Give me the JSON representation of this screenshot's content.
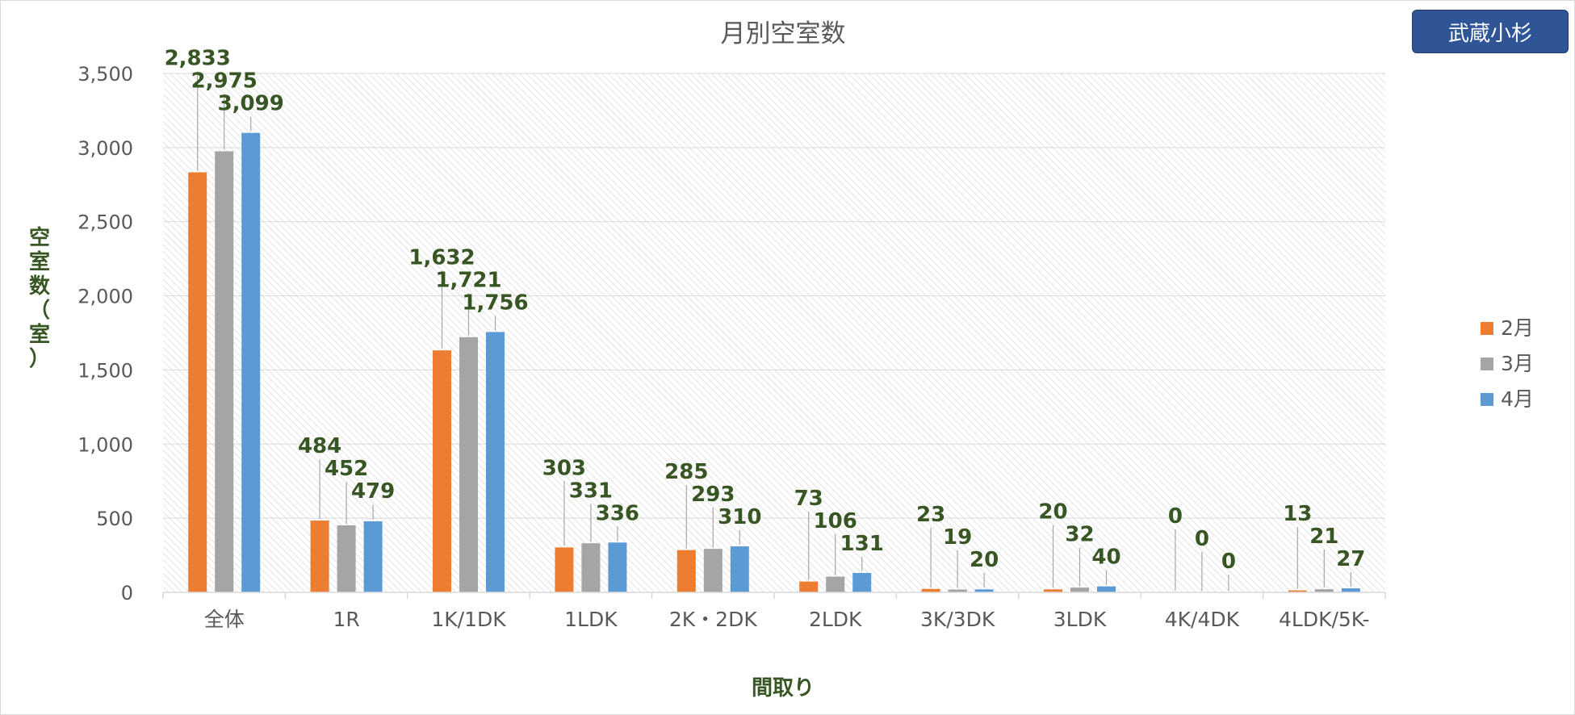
{
  "region_label": "武蔵小杉",
  "chart_data": {
    "type": "bar",
    "title": "月別空室数",
    "xlabel": "間取り",
    "ylabel": "空室数（室）",
    "ylim": [
      0,
      3500
    ],
    "yticks": [
      0,
      500,
      1000,
      1500,
      2000,
      2500,
      3000,
      3500
    ],
    "ytick_labels": [
      "0",
      "500",
      "1,000",
      "1,500",
      "2,000",
      "2,500",
      "3,000",
      "3,500"
    ],
    "grid": true,
    "legend_position": "right",
    "categories": [
      "全体",
      "1R",
      "1K/1DK",
      "1LDK",
      "2K・2DK",
      "2LDK",
      "3K/3DK",
      "3LDK",
      "4K/4DK",
      "4LDK/5K-"
    ],
    "series": [
      {
        "name": "2月",
        "color": "#ed7d31",
        "values": [
          2833,
          484,
          1632,
          303,
          285,
          73,
          23,
          20,
          0,
          13
        ],
        "labels": [
          "2,833",
          "484",
          "1,632",
          "303",
          "285",
          "73",
          "23",
          "20",
          "0",
          "13"
        ]
      },
      {
        "name": "3月",
        "color": "#a5a5a5",
        "values": [
          2975,
          452,
          1721,
          331,
          293,
          106,
          19,
          32,
          0,
          21
        ],
        "labels": [
          "2,975",
          "452",
          "1,721",
          "331",
          "293",
          "106",
          "19",
          "32",
          "0",
          "21"
        ]
      },
      {
        "name": "4月",
        "color": "#5b9bd5",
        "values": [
          3099,
          479,
          1756,
          336,
          310,
          131,
          20,
          40,
          0,
          27
        ],
        "labels": [
          "3,099",
          "479",
          "1,756",
          "336",
          "310",
          "131",
          "20",
          "40",
          "0",
          "27"
        ]
      }
    ]
  }
}
